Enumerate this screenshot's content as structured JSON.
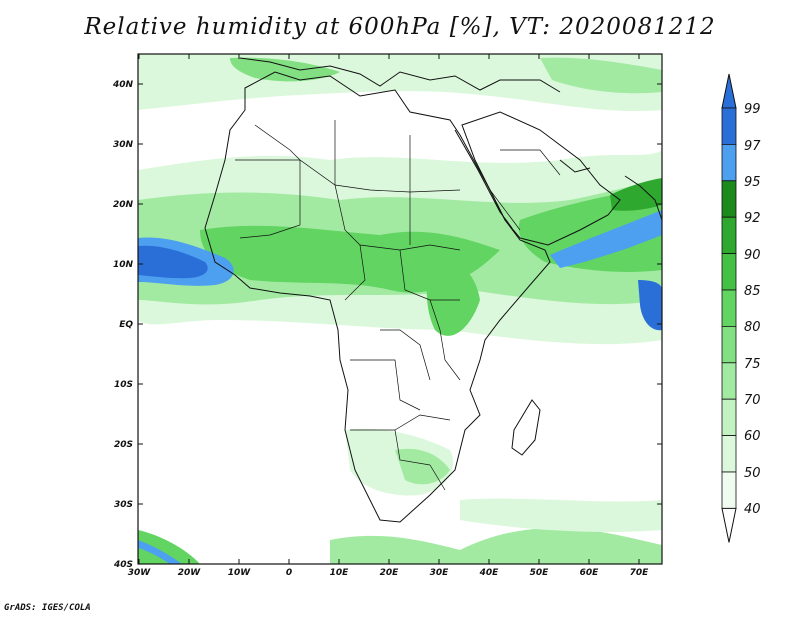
{
  "title": "Relative humidity at 600hPa [%], VT: 2020081212",
  "credit": "GrADS: IGES/COLA",
  "axes": {
    "lat_labels": [
      "40N",
      "30N",
      "20N",
      "10N",
      "EQ",
      "10S",
      "20S",
      "30S",
      "40S"
    ],
    "lon_labels": [
      "30W",
      "20W",
      "10W",
      "0",
      "10E",
      "20E",
      "30E",
      "40E",
      "50E",
      "60E",
      "70E"
    ]
  },
  "colorbar": {
    "levels": [
      "99",
      "97",
      "95",
      "92",
      "90",
      "85",
      "80",
      "75",
      "70",
      "60",
      "50",
      "40"
    ],
    "colors": [
      "#2a6fd8",
      "#4d9ff0",
      "#1c8a1c",
      "#2ea82e",
      "#44c044",
      "#62d462",
      "#82e082",
      "#a2eaa2",
      "#c2f2c2",
      "#dcf8dc",
      "#f0fcf0"
    ]
  },
  "field_colors": {
    "very_light": "#f0fcf0",
    "light": "#dcf8dc",
    "mid_light": "#c2f2c2",
    "mid": "#a2eaa2",
    "green": "#62d462",
    "dark_green": "#2ea82e",
    "light_blue": "#4d9ff0",
    "blue": "#2a6fd8"
  }
}
